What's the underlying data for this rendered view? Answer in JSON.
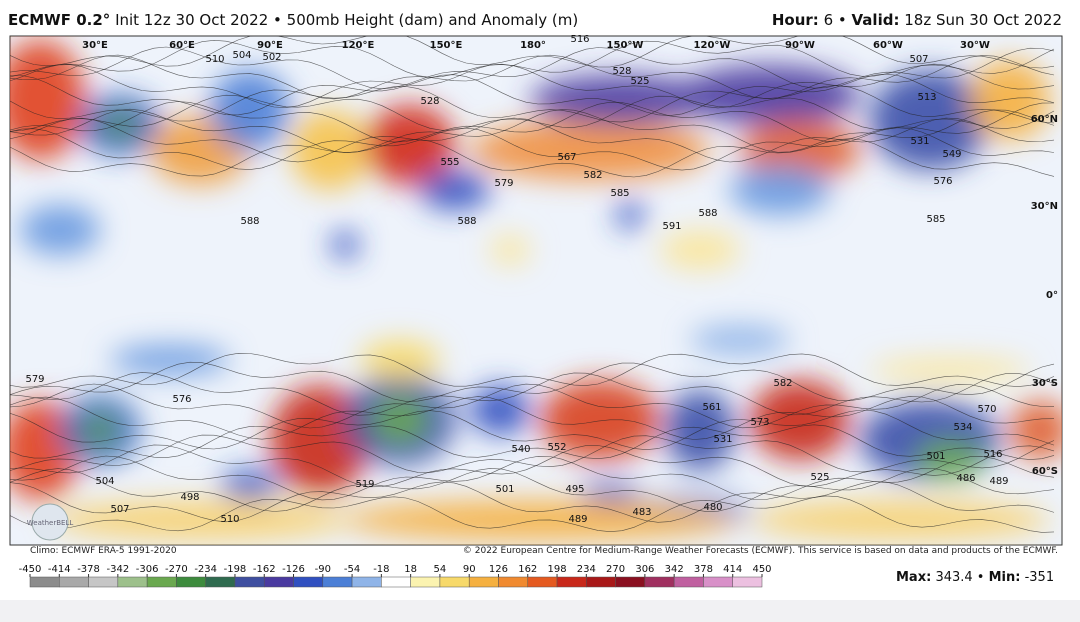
{
  "header": {
    "model": "ECMWF 0.2°",
    "init": "Init 12z 30 Oct 2022",
    "product": "500mb Height (dam) and Anomaly (m)",
    "hour_label": "Hour:",
    "hour": "6",
    "valid_label": "Valid:",
    "valid": "18z Sun 30 Oct 2022"
  },
  "map": {
    "longitudes": [
      "30°E",
      "60°E",
      "90°E",
      "120°E",
      "150°E",
      "180°",
      "150°W",
      "120°W",
      "90°W",
      "60°W",
      "30°W"
    ],
    "latitudes": [
      "60°N",
      "30°N",
      "0°",
      "30°S",
      "60°S"
    ],
    "contour_labels": [
      "504",
      "502",
      "510",
      "516",
      "528",
      "525",
      "528",
      "567",
      "582",
      "585",
      "588",
      "591",
      "588",
      "576",
      "549",
      "531",
      "513",
      "507",
      "555",
      "579",
      "588",
      "585",
      "579",
      "576",
      "552",
      "540",
      "501",
      "489",
      "483",
      "480",
      "495",
      "498",
      "510",
      "507",
      "504",
      "570",
      "534",
      "516",
      "501",
      "486",
      "489",
      "573",
      "561",
      "531",
      "525",
      "519",
      "582"
    ],
    "logo": "WeatherBELL"
  },
  "footer": {
    "climo": "Climo: ECMWF ERA-5 1991-2020",
    "copyright": "© 2022 European Centre for Medium-Range Weather Forecasts (ECMWF). This service is based on data and products of the ECMWF."
  },
  "colorbar": {
    "ticks": [
      -450,
      -414,
      -378,
      -342,
      -306,
      -270,
      -234,
      -198,
      -162,
      -126,
      -90,
      -54,
      -18,
      18,
      54,
      90,
      126,
      162,
      198,
      234,
      270,
      306,
      342,
      378,
      414,
      450
    ],
    "colors": [
      "#8c8c8c",
      "#a9a9a9",
      "#c6c6c6",
      "#9dc08b",
      "#6aa84f",
      "#3d8b3d",
      "#2f6b4f",
      "#3f4fa0",
      "#4a3aa0",
      "#3050c0",
      "#4c7fd6",
      "#8fb4e8",
      "#ffffff",
      "#fbf3b0",
      "#f7d96a",
      "#f5b040",
      "#f08a30",
      "#e45a20",
      "#c8281a",
      "#a81818",
      "#8a1020",
      "#a03060",
      "#c060a0",
      "#d890c8",
      "#ecc0e0"
    ]
  },
  "stats": {
    "max_label": "Max:",
    "max": 343.4,
    "min_label": "Min:",
    "min": -351.0
  }
}
